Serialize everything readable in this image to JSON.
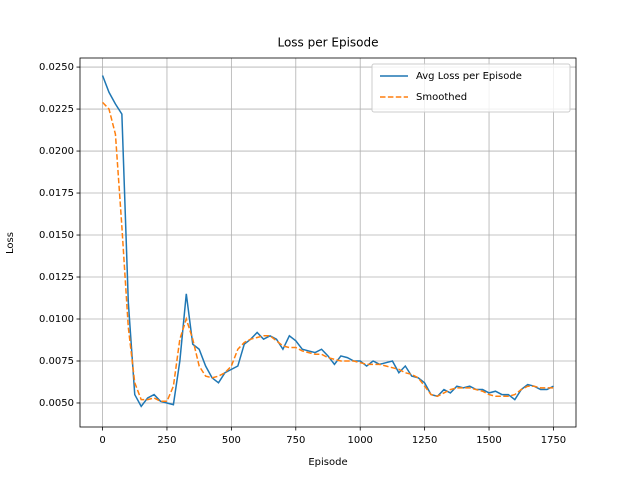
{
  "chart_data": {
    "type": "line",
    "title": "Loss per Episode",
    "xlabel": "Episode",
    "ylabel": "Loss",
    "x": [
      0,
      25,
      50,
      75,
      100,
      125,
      150,
      175,
      200,
      225,
      250,
      275,
      300,
      325,
      350,
      375,
      400,
      425,
      450,
      475,
      500,
      525,
      550,
      575,
      600,
      625,
      650,
      675,
      700,
      725,
      750,
      775,
      800,
      825,
      850,
      875,
      900,
      925,
      950,
      975,
      1000,
      1025,
      1050,
      1075,
      1100,
      1125,
      1150,
      1175,
      1200,
      1225,
      1250,
      1275,
      1300,
      1325,
      1350,
      1375,
      1400,
      1425,
      1450,
      1475,
      1500,
      1525,
      1550,
      1575,
      1600,
      1625,
      1650,
      1675,
      1700,
      1725,
      1750
    ],
    "series": [
      {
        "name": "Avg Loss per Episode",
        "color": "#1f77b4",
        "linestyle": "solid",
        "values": [
          0.0245,
          0.0235,
          0.0228,
          0.0222,
          0.011,
          0.0055,
          0.0048,
          0.0053,
          0.0055,
          0.0051,
          0.005,
          0.0049,
          0.0075,
          0.0115,
          0.0085,
          0.0082,
          0.0072,
          0.0065,
          0.0062,
          0.0068,
          0.007,
          0.0072,
          0.0085,
          0.0088,
          0.0092,
          0.0088,
          0.009,
          0.0088,
          0.0082,
          0.009,
          0.0087,
          0.0082,
          0.0081,
          0.008,
          0.0082,
          0.0078,
          0.0073,
          0.0078,
          0.0077,
          0.0075,
          0.0075,
          0.0072,
          0.0075,
          0.0073,
          0.0074,
          0.0075,
          0.0068,
          0.0072,
          0.0066,
          0.0065,
          0.0062,
          0.0055,
          0.0054,
          0.0058,
          0.0056,
          0.006,
          0.0059,
          0.006,
          0.0058,
          0.0058,
          0.0056,
          0.0057,
          0.0055,
          0.0055,
          0.0052,
          0.0058,
          0.0061,
          0.006,
          0.0058,
          0.0058,
          0.006
        ]
      },
      {
        "name": "Smoothed",
        "color": "#ff7f0e",
        "linestyle": "dashed",
        "values": [
          0.0229,
          0.0225,
          0.021,
          0.0155,
          0.0095,
          0.0062,
          0.0052,
          0.0052,
          0.0053,
          0.0051,
          0.0051,
          0.006,
          0.0088,
          0.01,
          0.0088,
          0.0072,
          0.0066,
          0.0065,
          0.0066,
          0.0068,
          0.0072,
          0.0082,
          0.0086,
          0.0088,
          0.0089,
          0.009,
          0.009,
          0.0087,
          0.0084,
          0.0083,
          0.0083,
          0.0081,
          0.008,
          0.0079,
          0.0079,
          0.0077,
          0.0076,
          0.0075,
          0.0075,
          0.0075,
          0.0074,
          0.0073,
          0.0073,
          0.0073,
          0.0072,
          0.0071,
          0.007,
          0.0068,
          0.0067,
          0.0065,
          0.006,
          0.0055,
          0.0054,
          0.0056,
          0.0058,
          0.0059,
          0.0059,
          0.0059,
          0.0058,
          0.0057,
          0.0055,
          0.0054,
          0.0054,
          0.0054,
          0.0055,
          0.0058,
          0.006,
          0.006,
          0.0059,
          0.0059,
          0.0059
        ]
      }
    ],
    "xlim": [
      -87.5,
      1837.5
    ],
    "xticks": [
      0,
      250,
      500,
      750,
      1000,
      1250,
      1500,
      1750
    ],
    "ylim": [
      0.00357,
      0.02554
    ],
    "yticks": [
      {
        "value": 0.005,
        "label": "0.0050"
      },
      {
        "value": 0.0075,
        "label": "0.0075"
      },
      {
        "value": 0.01,
        "label": "0.0100"
      },
      {
        "value": 0.0125,
        "label": "0.0125"
      },
      {
        "value": 0.015,
        "label": "0.0150"
      },
      {
        "value": 0.0175,
        "label": "0.0175"
      },
      {
        "value": 0.02,
        "label": "0.0200"
      },
      {
        "value": 0.0225,
        "label": "0.0225"
      },
      {
        "value": 0.025,
        "label": "0.0250"
      }
    ],
    "grid": true,
    "legend": "upper right"
  }
}
